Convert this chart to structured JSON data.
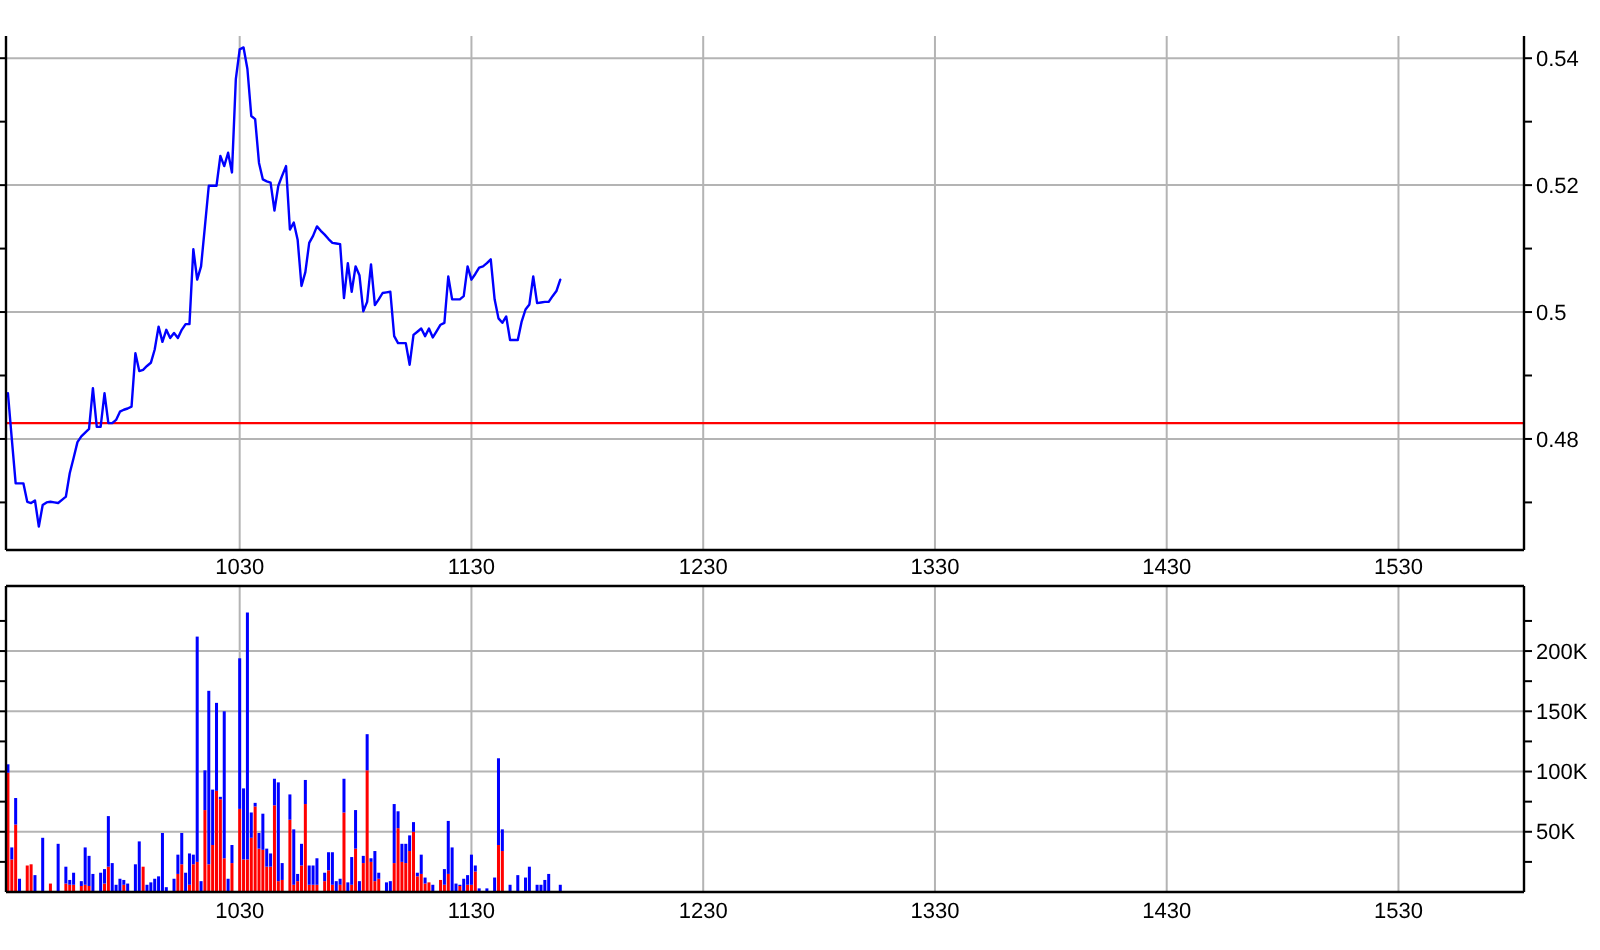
{
  "chart_data": [
    {
      "type": "line",
      "categories": [
        null,
        null,
        null,
        null,
        null,
        null,
        null,
        null,
        null,
        null,
        null,
        null,
        null,
        null,
        null,
        null,
        null,
        null,
        null,
        null,
        null,
        null,
        null,
        null,
        null,
        null,
        null,
        null,
        null,
        null,
        null,
        null,
        null,
        null,
        null,
        null,
        null,
        null,
        null,
        null,
        null,
        null,
        null,
        null,
        null,
        null,
        null,
        null,
        null,
        null,
        null,
        null,
        null,
        null,
        null,
        null,
        null,
        null,
        null,
        null,
        "1030",
        null,
        null,
        null,
        null,
        null,
        null,
        null,
        null,
        null,
        null,
        null,
        null,
        null,
        null,
        null,
        null,
        null,
        null,
        null,
        null,
        null,
        null,
        null,
        null,
        null,
        null,
        null,
        null,
        null,
        null,
        null,
        null,
        null,
        null,
        null,
        null,
        null,
        null,
        null,
        null,
        null,
        null,
        null,
        null,
        null,
        null,
        null,
        null,
        null,
        null,
        null,
        null,
        null,
        null,
        null,
        null,
        null,
        null,
        null,
        "1130",
        null,
        null,
        null,
        null,
        null,
        null,
        null,
        null,
        null,
        null,
        null,
        null,
        null,
        null,
        null,
        null,
        null,
        null,
        null,
        null,
        null,
        null,
        null,
        null,
        null,
        null,
        null,
        null,
        null,
        null,
        null,
        null,
        null,
        null,
        null,
        null,
        null,
        null,
        null,
        null,
        null,
        null,
        null,
        null,
        null,
        null,
        null,
        null,
        null,
        null,
        null,
        null,
        null,
        null,
        null,
        null,
        null,
        null,
        null,
        "1230",
        null,
        null,
        null,
        null,
        null,
        null,
        null,
        null,
        null,
        null,
        null,
        null,
        null,
        null,
        null,
        null,
        null,
        null,
        null,
        null,
        null,
        null,
        null,
        null,
        null,
        null,
        null,
        null,
        null,
        null,
        null,
        null,
        null,
        null,
        null,
        null,
        null,
        null,
        null,
        null,
        null,
        null,
        null,
        null,
        null,
        null,
        null,
        null,
        null,
        null,
        null,
        null,
        null,
        null,
        null,
        null,
        null,
        null,
        null,
        "1330",
        null,
        null,
        null,
        null,
        null,
        null,
        null,
        null,
        null,
        null,
        null,
        null,
        null,
        null,
        null,
        null,
        null,
        null,
        null,
        null,
        null,
        null,
        null,
        null,
        null,
        null,
        null,
        null,
        null,
        null,
        null,
        null,
        null,
        null,
        null,
        null,
        null,
        null,
        null,
        null,
        null,
        null,
        null,
        null,
        null,
        null,
        null,
        null,
        null,
        null,
        null,
        null,
        null,
        null,
        null,
        null,
        null,
        null,
        null,
        "1430",
        null,
        null,
        null,
        null,
        null,
        null,
        null,
        null,
        null,
        null,
        null,
        null,
        null,
        null,
        null,
        null,
        null,
        null,
        null,
        null,
        null,
        null,
        null,
        null,
        null,
        null,
        null,
        null,
        null,
        null,
        null,
        null,
        null,
        null,
        null,
        null,
        null,
        null,
        null,
        null,
        null,
        null,
        null,
        null,
        null,
        null,
        null,
        null,
        null,
        null,
        null,
        null,
        null,
        null,
        null,
        null,
        null,
        null,
        null,
        "1530",
        null,
        null,
        null,
        null,
        null,
        null,
        null,
        null,
        null,
        null,
        null,
        null,
        null,
        null,
        null,
        null,
        null,
        null,
        null,
        null,
        null,
        null,
        null,
        null,
        null,
        null,
        null,
        null,
        null,
        null,
        null,
        null
      ],
      "series": [
        {
          "color": "#0000ff",
          "values": [
            0.4872,
            0.48,
            0.473,
            0.473,
            0.473,
            0.4701,
            0.4699,
            0.4703,
            0.4662,
            0.4696,
            0.47,
            0.4701,
            0.47,
            0.4699,
            0.4704,
            0.4709,
            0.4746,
            0.477,
            0.4795,
            0.4804,
            0.481,
            0.4816,
            0.488,
            0.4819,
            0.4819,
            0.4872,
            0.4825,
            0.4825,
            0.483,
            0.4843,
            0.4846,
            0.4848,
            0.4851,
            0.4935,
            0.4907,
            0.4909,
            0.4915,
            0.492,
            0.4941,
            0.4977,
            0.4953,
            0.4972,
            0.4959,
            0.4967,
            0.4959,
            0.4972,
            0.4981,
            0.4981,
            0.5099,
            0.5051,
            0.5072,
            0.5135,
            0.5199,
            0.5199,
            0.5199,
            0.5246,
            0.523,
            0.5251,
            0.522,
            0.5367,
            0.5414,
            0.5417,
            0.5383,
            0.5309,
            0.5304,
            0.5235,
            0.5209,
            0.5206,
            0.5204,
            0.516,
            0.5199,
            0.5215,
            0.523,
            0.513,
            0.5141,
            0.5114,
            0.5041,
            0.5063,
            0.5109,
            0.512,
            0.5135,
            0.5128,
            0.5122,
            0.5115,
            0.5109,
            0.5108,
            0.5107,
            0.5022,
            0.5077,
            0.5032,
            0.5072,
            0.5058,
            0.5001,
            0.5016,
            0.5075,
            0.5011,
            0.502,
            0.503,
            0.5031,
            0.5032,
            0.4962,
            0.4951,
            0.4951,
            0.4951,
            0.4917,
            0.4964,
            0.4969,
            0.4974,
            0.4962,
            0.4974,
            0.496,
            0.497,
            0.498,
            0.4983,
            0.5056,
            0.502,
            0.502,
            0.502,
            0.5025,
            0.5072,
            0.5051,
            0.506,
            0.507,
            0.5072,
            0.5077,
            0.5083,
            0.502,
            0.499,
            0.4983,
            0.4993,
            0.4956,
            0.4956,
            0.4956,
            0.4985,
            0.5004,
            0.5012,
            0.5056,
            0.5014,
            0.5015,
            0.5016,
            0.5016,
            0.5025,
            0.5033,
            0.5051,
            null,
            null,
            null,
            null,
            null,
            null,
            null,
            null,
            null,
            null,
            null,
            null,
            null,
            null,
            null,
            null,
            null,
            null,
            null,
            null,
            null,
            null,
            null,
            null,
            null,
            null,
            null,
            null,
            null,
            null,
            null,
            null,
            null,
            null,
            null,
            null,
            null,
            null,
            null,
            null,
            null,
            null,
            null,
            null,
            null,
            null,
            null,
            null,
            null,
            null,
            null,
            null,
            null,
            null,
            null,
            null,
            null,
            null,
            null,
            null,
            null,
            null,
            null,
            null,
            null,
            null,
            null,
            null,
            null,
            null,
            null,
            null,
            null,
            null,
            null,
            null,
            null,
            null,
            null,
            null,
            null,
            null,
            null,
            null,
            null,
            null,
            null,
            null,
            null,
            null,
            null,
            null,
            null,
            null,
            null,
            null,
            null,
            null,
            null,
            null,
            null,
            null,
            null,
            null,
            null,
            null,
            null,
            null,
            null,
            null,
            null,
            null,
            null,
            null,
            null,
            null,
            null,
            null,
            null,
            null,
            null,
            null,
            null,
            null,
            null,
            null,
            null,
            null,
            null,
            null,
            null,
            null,
            null,
            null,
            null,
            null,
            null,
            null,
            null,
            null,
            null,
            null,
            null,
            null,
            null,
            null,
            null,
            null,
            null,
            null,
            null,
            null,
            null,
            null,
            null,
            null,
            null,
            null,
            null,
            null,
            null,
            null,
            null,
            null,
            null,
            null,
            null,
            null,
            null,
            null,
            null,
            null,
            null,
            null,
            null,
            null,
            null,
            null,
            null,
            null,
            null,
            null,
            null,
            null,
            null,
            null,
            null,
            null,
            null,
            null,
            null,
            null,
            null,
            null,
            null,
            null,
            null,
            null,
            null,
            null,
            null,
            null,
            null,
            null,
            null,
            null,
            null,
            null,
            null,
            null,
            null,
            null,
            null,
            null,
            null,
            null,
            null,
            null,
            null,
            null,
            null,
            null,
            null,
            null,
            null,
            null,
            null,
            null,
            null,
            null,
            null,
            null,
            null,
            null,
            null,
            null,
            null,
            null,
            null,
            null,
            null,
            null,
            null,
            null,
            null,
            null,
            null,
            null,
            null
          ]
        }
      ],
      "ylim": [
        0.4625,
        0.5435
      ],
      "yticks": [
        {
          "value": 0.47,
          "label": null
        },
        0.48,
        {
          "value": 0.49,
          "label": null
        },
        0.5,
        {
          "value": 0.51,
          "label": null
        },
        0.52,
        {
          "value": 0.53,
          "label": null
        },
        0.54
      ],
      "ref_lines": [
        {
          "axis": "y",
          "value": 0.4825,
          "color": "#ff0000"
        }
      ],
      "grid": true
    },
    {
      "type": "bar",
      "stacked": true,
      "categories": [
        null,
        null,
        null,
        null,
        null,
        null,
        null,
        null,
        null,
        null,
        null,
        null,
        null,
        null,
        null,
        null,
        null,
        null,
        null,
        null,
        null,
        null,
        null,
        null,
        null,
        null,
        null,
        null,
        null,
        null,
        null,
        null,
        null,
        null,
        null,
        null,
        null,
        null,
        null,
        null,
        null,
        null,
        null,
        null,
        null,
        null,
        null,
        null,
        null,
        null,
        null,
        null,
        null,
        null,
        null,
        null,
        null,
        null,
        null,
        null,
        "1030",
        null,
        null,
        null,
        null,
        null,
        null,
        null,
        null,
        null,
        null,
        null,
        null,
        null,
        null,
        null,
        null,
        null,
        null,
        null,
        null,
        null,
        null,
        null,
        null,
        null,
        null,
        null,
        null,
        null,
        null,
        null,
        null,
        null,
        null,
        null,
        null,
        null,
        null,
        null,
        null,
        null,
        null,
        null,
        null,
        null,
        null,
        null,
        null,
        null,
        null,
        null,
        null,
        null,
        null,
        null,
        null,
        null,
        null,
        null,
        "1130",
        null,
        null,
        null,
        null,
        null,
        null,
        null,
        null,
        null,
        null,
        null,
        null,
        null,
        null,
        null,
        null,
        null,
        null,
        null,
        null,
        null,
        null,
        null,
        null,
        null,
        null,
        null,
        null,
        null,
        null,
        null,
        null,
        null,
        null,
        null,
        null,
        null,
        null,
        null,
        null,
        null,
        null,
        null,
        null,
        null,
        null,
        null,
        null,
        null,
        null,
        null,
        null,
        null,
        null,
        null,
        null,
        null,
        null,
        null,
        "1230",
        null,
        null,
        null,
        null,
        null,
        null,
        null,
        null,
        null,
        null,
        null,
        null,
        null,
        null,
        null,
        null,
        null,
        null,
        null,
        null,
        null,
        null,
        null,
        null,
        null,
        null,
        null,
        null,
        null,
        null,
        null,
        null,
        null,
        null,
        null,
        null,
        null,
        null,
        null,
        null,
        null,
        null,
        null,
        null,
        null,
        null,
        null,
        null,
        null,
        null,
        null,
        null,
        null,
        null,
        null,
        null,
        null,
        null,
        null,
        "1330",
        null,
        null,
        null,
        null,
        null,
        null,
        null,
        null,
        null,
        null,
        null,
        null,
        null,
        null,
        null,
        null,
        null,
        null,
        null,
        null,
        null,
        null,
        null,
        null,
        null,
        null,
        null,
        null,
        null,
        null,
        null,
        null,
        null,
        null,
        null,
        null,
        null,
        null,
        null,
        null,
        null,
        null,
        null,
        null,
        null,
        null,
        null,
        null,
        null,
        null,
        null,
        null,
        null,
        null,
        null,
        null,
        null,
        null,
        null,
        "1430",
        null,
        null,
        null,
        null,
        null,
        null,
        null,
        null,
        null,
        null,
        null,
        null,
        null,
        null,
        null,
        null,
        null,
        null,
        null,
        null,
        null,
        null,
        null,
        null,
        null,
        null,
        null,
        null,
        null,
        null,
        null,
        null,
        null,
        null,
        null,
        null,
        null,
        null,
        null,
        null,
        null,
        null,
        null,
        null,
        null,
        null,
        null,
        null,
        null,
        null,
        null,
        null,
        null,
        null,
        null,
        null,
        null,
        null,
        null,
        "1530",
        null,
        null,
        null,
        null,
        null,
        null,
        null,
        null,
        null,
        null,
        null,
        null,
        null,
        null,
        null,
        null,
        null,
        null,
        null,
        null,
        null,
        null,
        null,
        null,
        null,
        null,
        null,
        null,
        null,
        null,
        null,
        null
      ],
      "series": [
        {
          "color": "#ff0000",
          "values": [
            99000,
            27000,
            56000,
            null,
            null,
            22000,
            23000,
            null,
            null,
            null,
            null,
            7000,
            null,
            null,
            null,
            7000,
            6000,
            6000,
            null,
            5000,
            6000,
            5000,
            null,
            null,
            null,
            7000,
            21000,
            null,
            null,
            null,
            6000,
            null,
            null,
            null,
            null,
            21000,
            null,
            null,
            null,
            null,
            null,
            null,
            null,
            null,
            15000,
            23000,
            null,
            6000,
            23000,
            25000,
            null,
            68000,
            23000,
            39000,
            84000,
            77000,
            28000,
            null,
            24000,
            null,
            69000,
            27000,
            27000,
            45000,
            71000,
            36000,
            35000,
            21000,
            21000,
            72000,
            9000,
            10000,
            null,
            60000,
            6000,
            9000,
            22000,
            73000,
            6000,
            6000,
            6000,
            null,
            9000,
            18000,
            6000,
            null,
            6000,
            66000,
            null,
            6000,
            36000,
            null,
            24000,
            101000,
            25000,
            9000,
            11000,
            null,
            null,
            null,
            24000,
            53000,
            25000,
            24000,
            34000,
            50000,
            13000,
            15000,
            7000,
            8000,
            null,
            null,
            10000,
            6000,
            15000,
            null,
            null,
            5000,
            null,
            6000,
            6000,
            17000,
            null,
            null,
            null,
            null,
            null,
            39000,
            34000,
            null,
            null,
            null,
            null,
            null,
            null,
            null,
            null,
            null,
            null,
            null,
            null,
            null,
            null,
            null,
            null,
            null,
            null,
            null,
            null,
            null,
            null,
            null,
            null,
            null,
            null,
            null,
            null,
            null,
            null,
            null,
            null,
            null,
            null,
            null,
            null,
            null,
            null,
            null,
            null,
            null,
            null,
            null,
            null,
            null,
            null,
            null,
            null,
            null,
            null,
            null,
            null,
            null,
            null,
            null,
            null,
            null,
            null,
            null,
            null,
            null,
            null,
            null,
            null,
            null,
            null,
            null,
            null,
            null,
            null,
            null,
            null,
            null,
            null,
            null,
            null,
            null,
            null,
            null,
            null,
            null,
            null,
            null,
            null,
            null,
            null,
            null,
            null,
            null,
            null,
            null,
            null,
            null,
            null,
            null,
            null,
            null,
            null,
            null,
            null,
            null,
            null,
            null,
            null,
            null,
            null,
            null,
            null,
            null,
            null,
            null,
            null,
            null,
            null,
            null,
            null,
            null,
            null,
            null,
            null,
            null,
            null,
            null,
            null,
            null,
            null,
            null,
            null,
            null,
            null,
            null,
            null,
            null,
            null,
            null,
            null,
            null,
            null,
            null,
            null,
            null,
            null,
            null,
            null,
            null,
            null,
            null,
            null,
            null,
            null,
            null,
            null,
            null,
            null,
            null,
            null,
            null,
            null,
            null,
            null,
            null,
            null,
            null,
            null,
            null,
            null,
            null,
            null,
            null,
            null,
            null,
            null,
            null,
            null,
            null,
            null,
            null,
            null,
            null,
            null,
            null,
            null,
            null,
            null,
            null,
            null,
            null,
            null,
            null,
            null,
            null,
            null,
            null,
            null,
            null,
            null,
            null,
            null,
            null,
            null,
            null,
            null,
            null,
            null,
            null,
            null,
            null,
            null,
            null,
            null,
            null,
            null,
            null,
            null,
            null,
            null,
            null,
            null,
            null,
            null,
            null,
            null,
            null,
            null,
            null,
            null,
            null,
            null,
            null,
            null,
            null,
            null,
            null,
            null,
            null,
            null,
            null,
            null,
            null,
            null,
            null,
            null,
            null,
            null,
            null,
            null,
            null,
            null,
            null,
            null,
            null,
            null,
            null,
            null,
            null,
            null,
            null,
            null,
            null,
            null,
            null,
            null,
            null,
            null
          ]
        },
        {
          "color": "#0000ff",
          "values": [
            7000,
            10000,
            22000,
            11000,
            null,
            null,
            null,
            14000,
            null,
            45000,
            null,
            null,
            null,
            40000,
            null,
            14000,
            4000,
            10000,
            null,
            4000,
            31000,
            25000,
            15000,
            null,
            16000,
            12000,
            42000,
            24000,
            6000,
            11000,
            4000,
            7000,
            null,
            23000,
            42000,
            null,
            6000,
            8000,
            11000,
            13000,
            49000,
            4000,
            null,
            11000,
            16000,
            26000,
            16000,
            26000,
            8000,
            187000,
            9000,
            33000,
            144000,
            46000,
            73000,
            2000,
            122000,
            11000,
            15000,
            null,
            125000,
            59000,
            205000,
            21000,
            3000,
            13000,
            30000,
            15000,
            11000,
            22000,
            82000,
            14000,
            null,
            21000,
            46000,
            6000,
            18000,
            20000,
            16000,
            16000,
            22000,
            null,
            7000,
            15000,
            27000,
            9000,
            5000,
            28000,
            8000,
            23000,
            32000,
            9000,
            6000,
            30000,
            3000,
            25000,
            5000,
            null,
            8000,
            9000,
            49000,
            14000,
            15000,
            16000,
            13000,
            8000,
            3000,
            16000,
            5000,
            null,
            6000,
            null,
            null,
            13000,
            44000,
            37000,
            7000,
            1000,
            11000,
            8000,
            25000,
            5000,
            3000,
            null,
            3000,
            null,
            12000,
            72000,
            18000,
            null,
            6000,
            null,
            14000,
            null,
            12000,
            21000,
            null,
            6000,
            6000,
            10000,
            15000,
            null,
            null,
            6000,
            null,
            null,
            null,
            null,
            null,
            null,
            null,
            null,
            null,
            null,
            null,
            null,
            null,
            null,
            null,
            null,
            null,
            null,
            null,
            null,
            null,
            null,
            null,
            null,
            null,
            null,
            null,
            null,
            null,
            null,
            null,
            null,
            null,
            null,
            null,
            null,
            null,
            null,
            null,
            null,
            null,
            null,
            null,
            null,
            null,
            null,
            null,
            null,
            null,
            null,
            null,
            null,
            null,
            null,
            null,
            null,
            null,
            null,
            null,
            null,
            null,
            null,
            null,
            null,
            null,
            null,
            null,
            null,
            null,
            null,
            null,
            null,
            null,
            null,
            null,
            null,
            null,
            null,
            null,
            null,
            null,
            null,
            null,
            null,
            null,
            null,
            null,
            null,
            null,
            null,
            null,
            null,
            null,
            null,
            null,
            null,
            null,
            null,
            null,
            null,
            null,
            null,
            null,
            null,
            null,
            null,
            null,
            null,
            null,
            null,
            null,
            null,
            null,
            null,
            null,
            null,
            null,
            null,
            null,
            null,
            null,
            null,
            null,
            null,
            null,
            null,
            null,
            null,
            null,
            null,
            null,
            null,
            null,
            null,
            null,
            null,
            null,
            null,
            null,
            null,
            null,
            null,
            null,
            null,
            null,
            null,
            null,
            null,
            null,
            null,
            null,
            null,
            null,
            null,
            null,
            null,
            null,
            null,
            null,
            null,
            null,
            null,
            null,
            null,
            null,
            null,
            null,
            null,
            null,
            null,
            null,
            null,
            null,
            null,
            null,
            null,
            null,
            null,
            null,
            null,
            null,
            null,
            null,
            null,
            null,
            null,
            null,
            null,
            null,
            null,
            null,
            null,
            null,
            null,
            null,
            null,
            null,
            null,
            null,
            null,
            null,
            null,
            null,
            null,
            null,
            null,
            null,
            null,
            null,
            null,
            null,
            null,
            null,
            null,
            null,
            null,
            null,
            null,
            null,
            null,
            null,
            null,
            null,
            null,
            null,
            null,
            null,
            null,
            null,
            null,
            null,
            null,
            null,
            null,
            null,
            null,
            null,
            null,
            null,
            null,
            null,
            null,
            null,
            null,
            null,
            null,
            null,
            null,
            null
          ]
        }
      ],
      "ylim": [
        0,
        254000
      ],
      "yticks": [
        {
          "value": 25000,
          "label": null
        },
        {
          "value": 50000,
          "label": "50K"
        },
        {
          "value": 75000,
          "label": null
        },
        {
          "value": 100000,
          "label": "100K"
        },
        {
          "value": 125000,
          "label": null
        },
        {
          "value": 150000,
          "label": "150K"
        },
        {
          "value": 175000,
          "label": null
        },
        {
          "value": 200000,
          "label": "200K"
        },
        {
          "value": 225000,
          "label": null
        }
      ],
      "grid": true
    }
  ]
}
